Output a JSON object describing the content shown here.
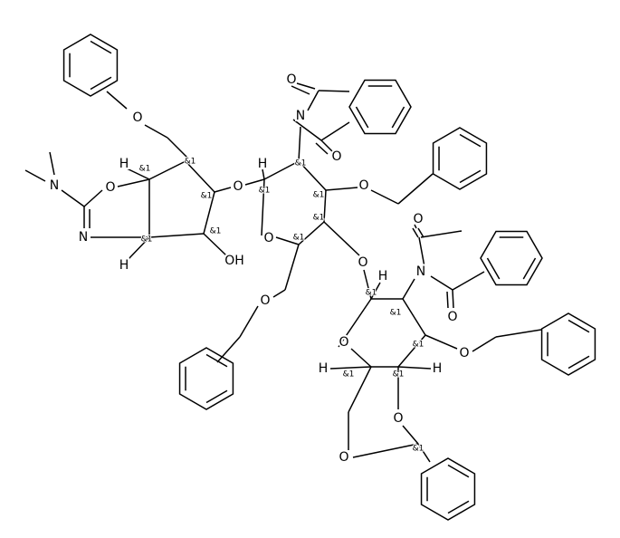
{
  "labels": [
    "O",
    "N",
    "O",
    "N",
    "H",
    "&1",
    "&1",
    "H",
    "&1",
    "&1",
    "&1",
    "OH",
    "O",
    "H",
    "&1",
    "O",
    "N",
    "O",
    "O",
    "&1",
    "&1",
    "O",
    "&1",
    "&1",
    "O",
    "O",
    "N",
    "O",
    "H",
    "&1",
    "&1",
    "&1",
    "O",
    "O",
    "H",
    "&1",
    "&1",
    "H",
    "O",
    "O",
    "&1",
    "O"
  ]
}
